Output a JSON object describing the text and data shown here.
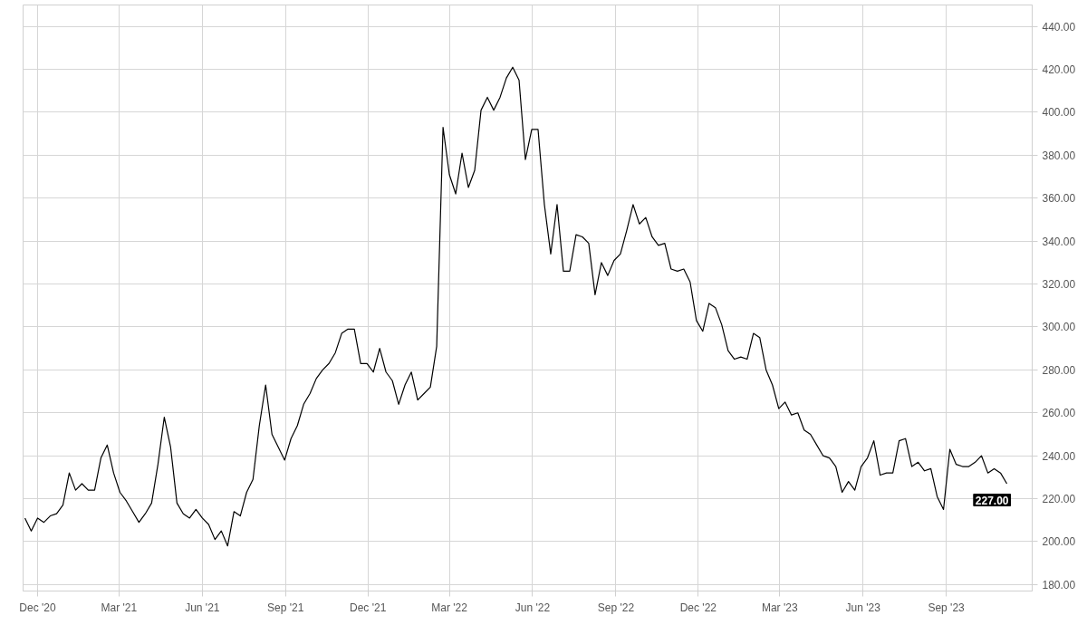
{
  "chart_data": {
    "type": "line",
    "x": [
      "2020-11-17",
      "2020-11-24",
      "2020-12-01",
      "2020-12-08",
      "2020-12-15",
      "2020-12-22",
      "2020-12-29",
      "2021-01-05",
      "2021-01-12",
      "2021-01-19",
      "2021-01-26",
      "2021-02-02",
      "2021-02-09",
      "2021-02-16",
      "2021-02-23",
      "2021-03-02",
      "2021-03-09",
      "2021-03-16",
      "2021-03-23",
      "2021-03-30",
      "2021-04-06",
      "2021-04-13",
      "2021-04-20",
      "2021-04-27",
      "2021-05-04",
      "2021-05-11",
      "2021-05-18",
      "2021-05-25",
      "2021-06-01",
      "2021-06-08",
      "2021-06-15",
      "2021-06-22",
      "2021-06-29",
      "2021-07-06",
      "2021-07-13",
      "2021-07-20",
      "2021-07-27",
      "2021-08-03",
      "2021-08-10",
      "2021-08-17",
      "2021-08-24",
      "2021-08-31",
      "2021-09-07",
      "2021-09-14",
      "2021-09-21",
      "2021-09-28",
      "2021-10-05",
      "2021-10-12",
      "2021-10-19",
      "2021-10-26",
      "2021-11-02",
      "2021-11-09",
      "2021-11-16",
      "2021-11-23",
      "2021-11-30",
      "2021-12-07",
      "2021-12-14",
      "2021-12-21",
      "2021-12-28",
      "2022-01-04",
      "2022-01-11",
      "2022-01-18",
      "2022-01-25",
      "2022-02-01",
      "2022-02-08",
      "2022-02-15",
      "2022-02-22",
      "2022-03-01",
      "2022-03-08",
      "2022-03-15",
      "2022-03-22",
      "2022-03-29",
      "2022-04-05",
      "2022-04-12",
      "2022-04-19",
      "2022-04-26",
      "2022-05-03",
      "2022-05-10",
      "2022-05-17",
      "2022-05-24",
      "2022-05-31",
      "2022-06-07",
      "2022-06-14",
      "2022-06-21",
      "2022-06-28",
      "2022-07-05",
      "2022-07-12",
      "2022-07-19",
      "2022-07-26",
      "2022-08-02",
      "2022-08-09",
      "2022-08-16",
      "2022-08-23",
      "2022-08-30",
      "2022-09-06",
      "2022-09-13",
      "2022-09-20",
      "2022-09-27",
      "2022-10-04",
      "2022-10-11",
      "2022-10-18",
      "2022-10-25",
      "2022-11-01",
      "2022-11-08",
      "2022-11-15",
      "2022-11-22",
      "2022-11-29",
      "2022-12-06",
      "2022-12-13",
      "2022-12-20",
      "2022-12-27",
      "2023-01-03",
      "2023-01-10",
      "2023-01-17",
      "2023-01-24",
      "2023-01-31",
      "2023-02-07",
      "2023-02-14",
      "2023-02-21",
      "2023-02-28",
      "2023-03-07",
      "2023-03-14",
      "2023-03-21",
      "2023-03-28",
      "2023-04-04",
      "2023-04-11",
      "2023-04-18",
      "2023-04-25",
      "2023-05-02",
      "2023-05-09",
      "2023-05-16",
      "2023-05-23",
      "2023-05-30",
      "2023-06-06",
      "2023-06-13",
      "2023-06-20",
      "2023-06-27",
      "2023-07-04",
      "2023-07-11",
      "2023-07-18",
      "2023-07-25",
      "2023-08-01",
      "2023-08-08",
      "2023-08-15",
      "2023-08-22",
      "2023-08-29",
      "2023-09-05",
      "2023-09-12",
      "2023-09-19",
      "2023-09-26",
      "2023-10-03",
      "2023-10-10",
      "2023-10-17",
      "2023-10-24",
      "2023-10-31",
      "2023-11-07"
    ],
    "series": [
      {
        "color": "#000000",
        "values": [
          211,
          205,
          211,
          209,
          212,
          213,
          217,
          232,
          224,
          227,
          224,
          224,
          239,
          245,
          232,
          223,
          219,
          214,
          209,
          213,
          218,
          236,
          258,
          244,
          218,
          213,
          211,
          215,
          211,
          208,
          201,
          205,
          198,
          214,
          212,
          223,
          229,
          254,
          273,
          250,
          244,
          238,
          248,
          254,
          264,
          269,
          276,
          280,
          283,
          288,
          297,
          299,
          299,
          283,
          283,
          279,
          290,
          279,
          275,
          264,
          273,
          279,
          266,
          269,
          272,
          291,
          393,
          371,
          362,
          381,
          365,
          373,
          401,
          407,
          401,
          407,
          416,
          421,
          415,
          378,
          392,
          392,
          357,
          334,
          357,
          326,
          326,
          343,
          342,
          339,
          315,
          330,
          324,
          331,
          334,
          345,
          357,
          348,
          351,
          342,
          338,
          339,
          327,
          326,
          327,
          321,
          303,
          298,
          311,
          309,
          301,
          289,
          285,
          286,
          285,
          297,
          295,
          280,
          273,
          262,
          265,
          259,
          260,
          252,
          250,
          245,
          240,
          239,
          235,
          223,
          228,
          224,
          235,
          239,
          247,
          231,
          232,
          232,
          247,
          248,
          235,
          237,
          233,
          234,
          221,
          215,
          243,
          236,
          235,
          235,
          237,
          240,
          232,
          234,
          232,
          227
        ]
      }
    ],
    "annotations": [
      {
        "text": "227.00",
        "x": "2023-11-07",
        "y": 227
      }
    ],
    "xlim": [
      "2020-11-15",
      "2023-12-05"
    ],
    "ylim": [
      177,
      450
    ],
    "xticks": [
      {
        "value": "2020-12-01",
        "label": "Dec '20"
      },
      {
        "value": "2021-03-01",
        "label": "Mar '21"
      },
      {
        "value": "2021-06-01",
        "label": "Jun '21"
      },
      {
        "value": "2021-09-01",
        "label": "Sep '21"
      },
      {
        "value": "2021-12-01",
        "label": "Dec '21"
      },
      {
        "value": "2022-03-01",
        "label": "Mar '22"
      },
      {
        "value": "2022-06-01",
        "label": "Jun '22"
      },
      {
        "value": "2022-09-01",
        "label": "Sep '22"
      },
      {
        "value": "2022-12-01",
        "label": "Dec '22"
      },
      {
        "value": "2023-03-01",
        "label": "Mar '23"
      },
      {
        "value": "2023-06-01",
        "label": "Jun '23"
      },
      {
        "value": "2023-09-01",
        "label": "Sep '23"
      }
    ],
    "yticks": [
      {
        "value": 180,
        "label": "180.00"
      },
      {
        "value": 200,
        "label": "200.00"
      },
      {
        "value": 220,
        "label": "220.00"
      },
      {
        "value": 240,
        "label": "240.00"
      },
      {
        "value": 260,
        "label": "260.00"
      },
      {
        "value": 280,
        "label": "280.00"
      },
      {
        "value": 300,
        "label": "300.00"
      },
      {
        "value": 320,
        "label": "320.00"
      },
      {
        "value": 340,
        "label": "340.00"
      },
      {
        "value": 360,
        "label": "360.00"
      },
      {
        "value": 380,
        "label": "380.00"
      },
      {
        "value": 400,
        "label": "400.00"
      },
      {
        "value": 420,
        "label": "420.00"
      },
      {
        "value": 440,
        "label": "440.00"
      }
    ],
    "grid": true,
    "line_style": "solid"
  }
}
